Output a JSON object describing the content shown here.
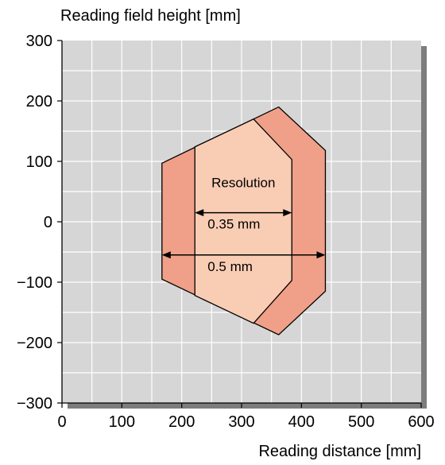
{
  "chart_data": {
    "type": "area",
    "ylabel": "Reading field height [mm]",
    "xlabel": "Reading distance  [mm]",
    "xlim": [
      0,
      600
    ],
    "ylim": [
      -300,
      300
    ],
    "xticks": [
      0,
      100,
      200,
      300,
      400,
      500,
      600
    ],
    "yticks": [
      300,
      200,
      100,
      0,
      -100,
      -200,
      -300
    ],
    "ytick_labels": [
      "300",
      "200",
      "100",
      "0",
      "−100",
      "−200",
      "−300"
    ],
    "grid": true,
    "colors": {
      "plot_bg": "#d6d6d6",
      "grid": "#ffffff",
      "outer_region": "#f0a088",
      "inner_region": "#f9cdb4",
      "outline": "#000000"
    },
    "regions": [
      {
        "name": "0.5 mm",
        "label": "0.5 mm",
        "polygon": [
          [
            167,
            97
          ],
          [
            362,
            190
          ],
          [
            440,
            118
          ],
          [
            440,
            -115
          ],
          [
            362,
            -187
          ],
          [
            167,
            -95
          ]
        ]
      },
      {
        "name": "0.35 mm",
        "label": "0.35 mm",
        "polygon": [
          [
            222,
            124
          ],
          [
            320,
            170
          ],
          [
            384,
            103
          ],
          [
            384,
            -97
          ],
          [
            320,
            -168
          ],
          [
            222,
            -122
          ]
        ]
      }
    ],
    "annotations": {
      "heading": "Resolution",
      "arrows": [
        {
          "label": "0.35 mm",
          "x_from": 222,
          "x_to": 384,
          "y": 15
        },
        {
          "label": "0.5 mm",
          "x_from": 167,
          "x_to": 440,
          "y": -55
        }
      ]
    }
  }
}
